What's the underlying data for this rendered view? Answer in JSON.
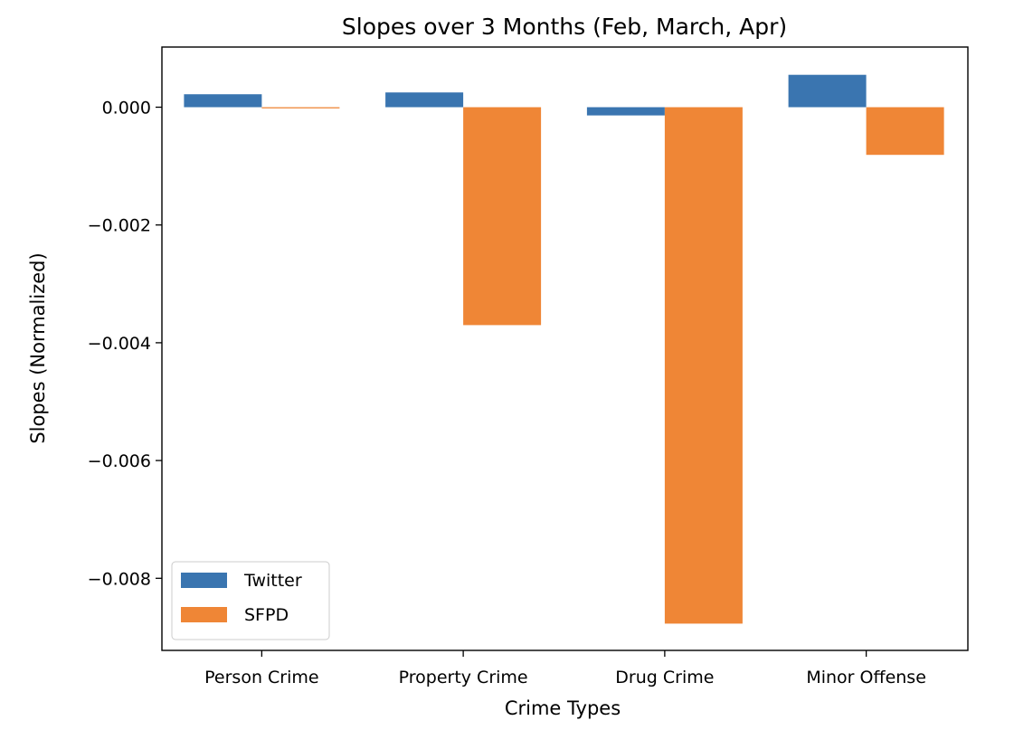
{
  "chart_data": {
    "type": "bar",
    "title": "Slopes over 3 Months (Feb, March, Apr)",
    "xlabel": "Crime Types",
    "ylabel": "Slopes (Normalized)",
    "categories": [
      "Person Crime",
      "Property Crime",
      "Drug Crime",
      "Minor Offense"
    ],
    "series": [
      {
        "name": "Twitter",
        "color": "#3a75b0",
        "values": [
          0.00022,
          0.00025,
          -0.00014,
          0.00055
        ]
      },
      {
        "name": "SFPD",
        "color": "#ef8636",
        "values": [
          -2e-05,
          -0.0037,
          -0.00877,
          -0.00081
        ]
      }
    ],
    "ylim": [
      -0.00925,
      0.001
    ],
    "yticks": [
      0.0,
      -0.002,
      -0.004,
      -0.006,
      -0.008
    ],
    "ytick_labels": [
      "0.000",
      "−0.002",
      "−0.004",
      "−0.006",
      "−0.008"
    ],
    "grid": false,
    "legend": "lower-left"
  }
}
